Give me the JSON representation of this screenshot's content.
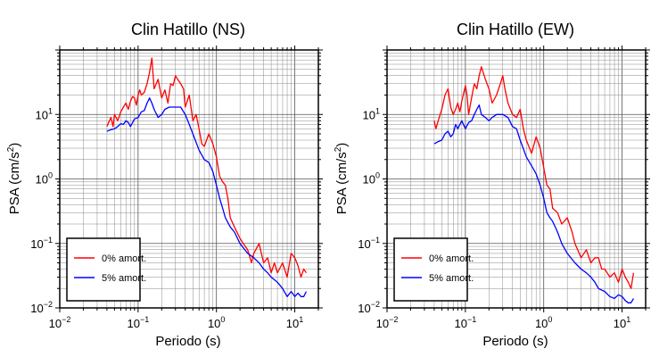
{
  "chart_data": [
    {
      "type": "line",
      "title": "Clin Hatillo (NS)",
      "xlabel": "Periodo (s)",
      "ylabel_main": "PSA (cm/s",
      "ylabel_sup": "2",
      "ylabel_end": ")",
      "xscale": "log",
      "yscale": "log",
      "xlim": [
        0.01,
        20
      ],
      "ylim": [
        0.01,
        100
      ],
      "grid": true,
      "legend_position": "bottom-left",
      "x_ticks": [
        {
          "base": "10",
          "exp": "−2",
          "value": 0.01
        },
        {
          "base": "10",
          "exp": "−1",
          "value": 0.1
        },
        {
          "base": "10",
          "exp": "0",
          "value": 1
        },
        {
          "base": "10",
          "exp": "1",
          "value": 10
        }
      ],
      "y_ticks": [
        {
          "base": "10",
          "exp": "−2",
          "value": 0.01
        },
        {
          "base": "10",
          "exp": "−1",
          "value": 0.1
        },
        {
          "base": "10",
          "exp": "0",
          "value": 1
        },
        {
          "base": "10",
          "exp": "1",
          "value": 10
        }
      ],
      "series": [
        {
          "name": "0% amort.",
          "color": "#ff0000",
          "x": [
            0.04,
            0.042,
            0.045,
            0.048,
            0.05,
            0.055,
            0.06,
            0.065,
            0.07,
            0.075,
            0.08,
            0.085,
            0.09,
            0.095,
            0.1,
            0.105,
            0.11,
            0.12,
            0.13,
            0.14,
            0.15,
            0.16,
            0.18,
            0.2,
            0.22,
            0.24,
            0.26,
            0.28,
            0.3,
            0.32,
            0.35,
            0.38,
            0.4,
            0.45,
            0.5,
            0.55,
            0.6,
            0.65,
            0.7,
            0.8,
            0.9,
            1.0,
            1.1,
            1.2,
            1.3,
            1.4,
            1.5,
            1.7,
            2.0,
            2.2,
            2.5,
            2.8,
            3.0,
            3.5,
            4.0,
            4.5,
            5.0,
            5.5,
            6.0,
            7.0,
            8.0,
            9.0,
            10.0,
            11.0,
            12.0,
            13.0,
            14.0
          ],
          "y": [
            6.5,
            7.5,
            9.0,
            6.5,
            10.0,
            8.0,
            11.0,
            13.0,
            15.0,
            12.0,
            16.0,
            19.0,
            18.0,
            14.0,
            20.0,
            24.0,
            20.0,
            22.0,
            30.0,
            45.0,
            75.0,
            25.0,
            35.0,
            18.0,
            24.0,
            15.0,
            30.0,
            28.0,
            40.0,
            35.0,
            30.0,
            25.0,
            13.0,
            20.0,
            8.0,
            10.0,
            6.0,
            3.5,
            3.2,
            5.0,
            3.5,
            2.2,
            1.1,
            0.9,
            0.8,
            0.5,
            0.25,
            0.18,
            0.12,
            0.1,
            0.08,
            0.05,
            0.07,
            0.1,
            0.05,
            0.06,
            0.035,
            0.05,
            0.035,
            0.05,
            0.03,
            0.07,
            0.06,
            0.045,
            0.03,
            0.04,
            0.035
          ]
        },
        {
          "name": "5% amort.",
          "color": "#0000ff",
          "x": [
            0.04,
            0.045,
            0.05,
            0.055,
            0.06,
            0.065,
            0.07,
            0.075,
            0.08,
            0.09,
            0.1,
            0.11,
            0.12,
            0.13,
            0.14,
            0.15,
            0.16,
            0.18,
            0.2,
            0.22,
            0.25,
            0.3,
            0.35,
            0.4,
            0.45,
            0.5,
            0.6,
            0.7,
            0.8,
            0.9,
            1.0,
            1.1,
            1.2,
            1.3,
            1.5,
            1.7,
            2.0,
            2.5,
            3.0,
            3.5,
            4.0,
            4.5,
            5.0,
            6.0,
            7.0,
            8.0,
            9.0,
            10.0,
            11.0,
            12.0,
            13.0,
            14.0
          ],
          "y": [
            5.5,
            5.8,
            6.0,
            6.5,
            7.2,
            7.0,
            8.0,
            7.5,
            6.5,
            8.5,
            9.0,
            11.0,
            11.5,
            15.0,
            18.0,
            15.0,
            12.0,
            9.0,
            10.0,
            12.0,
            13.0,
            13.0,
            13.0,
            10.0,
            7.0,
            5.0,
            2.8,
            2.0,
            1.8,
            1.3,
            0.8,
            0.5,
            0.35,
            0.25,
            0.18,
            0.15,
            0.1,
            0.07,
            0.06,
            0.05,
            0.04,
            0.035,
            0.03,
            0.025,
            0.02,
            0.015,
            0.018,
            0.015,
            0.017,
            0.015,
            0.015,
            0.018
          ]
        }
      ]
    },
    {
      "type": "line",
      "title": "Clin Hatillo (EW)",
      "xlabel": "Periodo (s)",
      "ylabel_main": "PSA (cm/s",
      "ylabel_sup": "2",
      "ylabel_end": ")",
      "xscale": "log",
      "yscale": "log",
      "xlim": [
        0.01,
        20
      ],
      "ylim": [
        0.01,
        100
      ],
      "grid": true,
      "legend_position": "bottom-left",
      "x_ticks": [
        {
          "base": "10",
          "exp": "−2",
          "value": 0.01
        },
        {
          "base": "10",
          "exp": "−1",
          "value": 0.1
        },
        {
          "base": "10",
          "exp": "0",
          "value": 1
        },
        {
          "base": "10",
          "exp": "1",
          "value": 10
        }
      ],
      "y_ticks": [
        {
          "base": "10",
          "exp": "−2",
          "value": 0.01
        },
        {
          "base": "10",
          "exp": "−1",
          "value": 0.1
        },
        {
          "base": "10",
          "exp": "0",
          "value": 1
        },
        {
          "base": "10",
          "exp": "1",
          "value": 10
        }
      ],
      "series": [
        {
          "name": "0% amort.",
          "color": "#ff0000",
          "x": [
            0.04,
            0.042,
            0.045,
            0.05,
            0.055,
            0.06,
            0.065,
            0.07,
            0.075,
            0.08,
            0.085,
            0.09,
            0.1,
            0.105,
            0.11,
            0.12,
            0.13,
            0.14,
            0.15,
            0.16,
            0.18,
            0.2,
            0.22,
            0.25,
            0.28,
            0.3,
            0.32,
            0.35,
            0.4,
            0.45,
            0.5,
            0.55,
            0.6,
            0.7,
            0.8,
            0.9,
            1.0,
            1.1,
            1.2,
            1.3,
            1.5,
            1.7,
            2.0,
            2.3,
            2.5,
            3.0,
            3.5,
            4.0,
            4.5,
            5.0,
            5.5,
            6.0,
            7.0,
            8.0,
            9.0,
            10.0,
            11.0,
            12.0,
            13.0,
            14.0
          ],
          "y": [
            8.0,
            6.0,
            8.0,
            12.0,
            20.0,
            25.0,
            13.0,
            10.0,
            12.0,
            15.0,
            11.0,
            16.0,
            28.0,
            20.0,
            10.0,
            18.0,
            30.0,
            25.0,
            40.0,
            55.0,
            35.0,
            25.0,
            15.0,
            20.0,
            30.0,
            40.0,
            25.0,
            15.0,
            10.0,
            9.0,
            12.0,
            6.0,
            4.0,
            2.5,
            4.5,
            3.0,
            1.5,
            0.8,
            0.7,
            0.35,
            0.3,
            0.2,
            0.25,
            0.15,
            0.1,
            0.06,
            0.08,
            0.05,
            0.06,
            0.06,
            0.04,
            0.04,
            0.03,
            0.035,
            0.025,
            0.04,
            0.03,
            0.025,
            0.02,
            0.035
          ]
        },
        {
          "name": "5% amort.",
          "color": "#0000ff",
          "x": [
            0.04,
            0.045,
            0.05,
            0.055,
            0.06,
            0.065,
            0.07,
            0.075,
            0.08,
            0.09,
            0.1,
            0.11,
            0.12,
            0.13,
            0.14,
            0.15,
            0.16,
            0.18,
            0.2,
            0.22,
            0.25,
            0.3,
            0.35,
            0.4,
            0.45,
            0.5,
            0.6,
            0.7,
            0.8,
            0.9,
            1.0,
            1.1,
            1.2,
            1.3,
            1.5,
            1.7,
            2.0,
            2.5,
            3.0,
            3.5,
            4.0,
            4.5,
            5.0,
            6.0,
            7.0,
            8.0,
            9.0,
            10.0,
            11.0,
            12.0,
            13.0,
            14.0
          ],
          "y": [
            3.5,
            3.8,
            4.0,
            5.0,
            5.5,
            4.5,
            5.0,
            7.0,
            6.0,
            8.0,
            6.0,
            7.5,
            8.0,
            10.0,
            12.0,
            14.0,
            10.0,
            9.0,
            8.0,
            9.0,
            10.0,
            10.0,
            9.0,
            6.5,
            6.0,
            4.0,
            2.2,
            1.6,
            1.2,
            0.8,
            0.5,
            0.3,
            0.25,
            0.22,
            0.15,
            0.1,
            0.07,
            0.05,
            0.04,
            0.035,
            0.03,
            0.025,
            0.02,
            0.018,
            0.015,
            0.014,
            0.016,
            0.015,
            0.013,
            0.012,
            0.012,
            0.014
          ]
        }
      ]
    }
  ]
}
